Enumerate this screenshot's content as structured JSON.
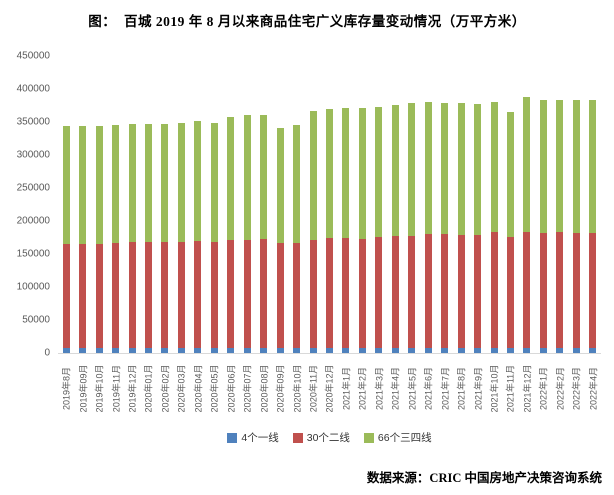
{
  "title": "图：  百城 2019 年 8 月以来商品住宅广义库存量变动情况（万平方米）",
  "source": "数据来源：CRIC 中国房地产决策咨询系统",
  "colors": {
    "tier1_blue": "#4F81BD",
    "tier2_red": "#C0504D",
    "tier34_green": "#9BBB59",
    "axis_line": "#D9D9D9",
    "axis_text": "#595959"
  },
  "chart_data": {
    "type": "bar",
    "stacked": true,
    "title": "图：  百城 2019 年 8 月以来商品住宅广义库存量变动情况（万平方米）",
    "xlabel": "",
    "ylabel": "",
    "ylim": [
      0,
      450000
    ],
    "yticks": [
      0,
      50000,
      100000,
      150000,
      200000,
      250000,
      300000,
      350000,
      400000,
      450000
    ],
    "grid": false,
    "legend_position": "bottom",
    "categories": [
      "2019年8月",
      "2019年09月",
      "2019年10月",
      "2019年11月",
      "2019年12月",
      "2020年01月",
      "2020年02月",
      "2020年03月",
      "2020年04月",
      "2020年05月",
      "2020年06月",
      "2020年07月",
      "2020年08月",
      "2020年09月",
      "2020年10月",
      "2020年11月",
      "2020年12月",
      "2021年1月",
      "2021年2月",
      "2021年3月",
      "2021年4月",
      "2021年5月",
      "2021年6月",
      "2021年7月",
      "2021年8月",
      "2021年9月",
      "2021年10月",
      "2021年11月",
      "2021年12月",
      "2022年1月",
      "2022年2月",
      "2022年3月",
      "2022年4月"
    ],
    "series": [
      {
        "name": "4个一线",
        "key": "tier1",
        "color": "#4F81BD",
        "values": [
          7500,
          7500,
          7500,
          7500,
          7500,
          7500,
          7500,
          7500,
          7500,
          7500,
          7500,
          7500,
          7500,
          7500,
          7500,
          7500,
          7500,
          7500,
          7500,
          7500,
          7500,
          7500,
          7500,
          7500,
          7500,
          7500,
          8000,
          8000,
          8000,
          8000,
          8000,
          8000,
          8000
        ]
      },
      {
        "name": "30个二线",
        "key": "tier2",
        "color": "#C0504D",
        "values": [
          158000,
          158000,
          158000,
          159000,
          160500,
          160500,
          160500,
          160500,
          161500,
          160000,
          163000,
          164000,
          165000,
          159000,
          159000,
          164500,
          166500,
          166500,
          165000,
          168000,
          169500,
          170500,
          173000,
          173000,
          171500,
          172000,
          175000,
          168500,
          176000,
          174000,
          175000,
          173500,
          173500
        ]
      },
      {
        "name": "66个三四线",
        "key": "tier34",
        "color": "#9BBB59",
        "values": [
          178000,
          178000,
          178000,
          178500,
          178500,
          178500,
          178500,
          180500,
          183000,
          181000,
          186500,
          189000,
          188500,
          174500,
          179000,
          195000,
          196500,
          197500,
          199500,
          198000,
          199500,
          201500,
          200500,
          198500,
          200000,
          198000,
          198000,
          188500,
          203500,
          202000,
          201000,
          201500,
          201500
        ]
      }
    ]
  }
}
